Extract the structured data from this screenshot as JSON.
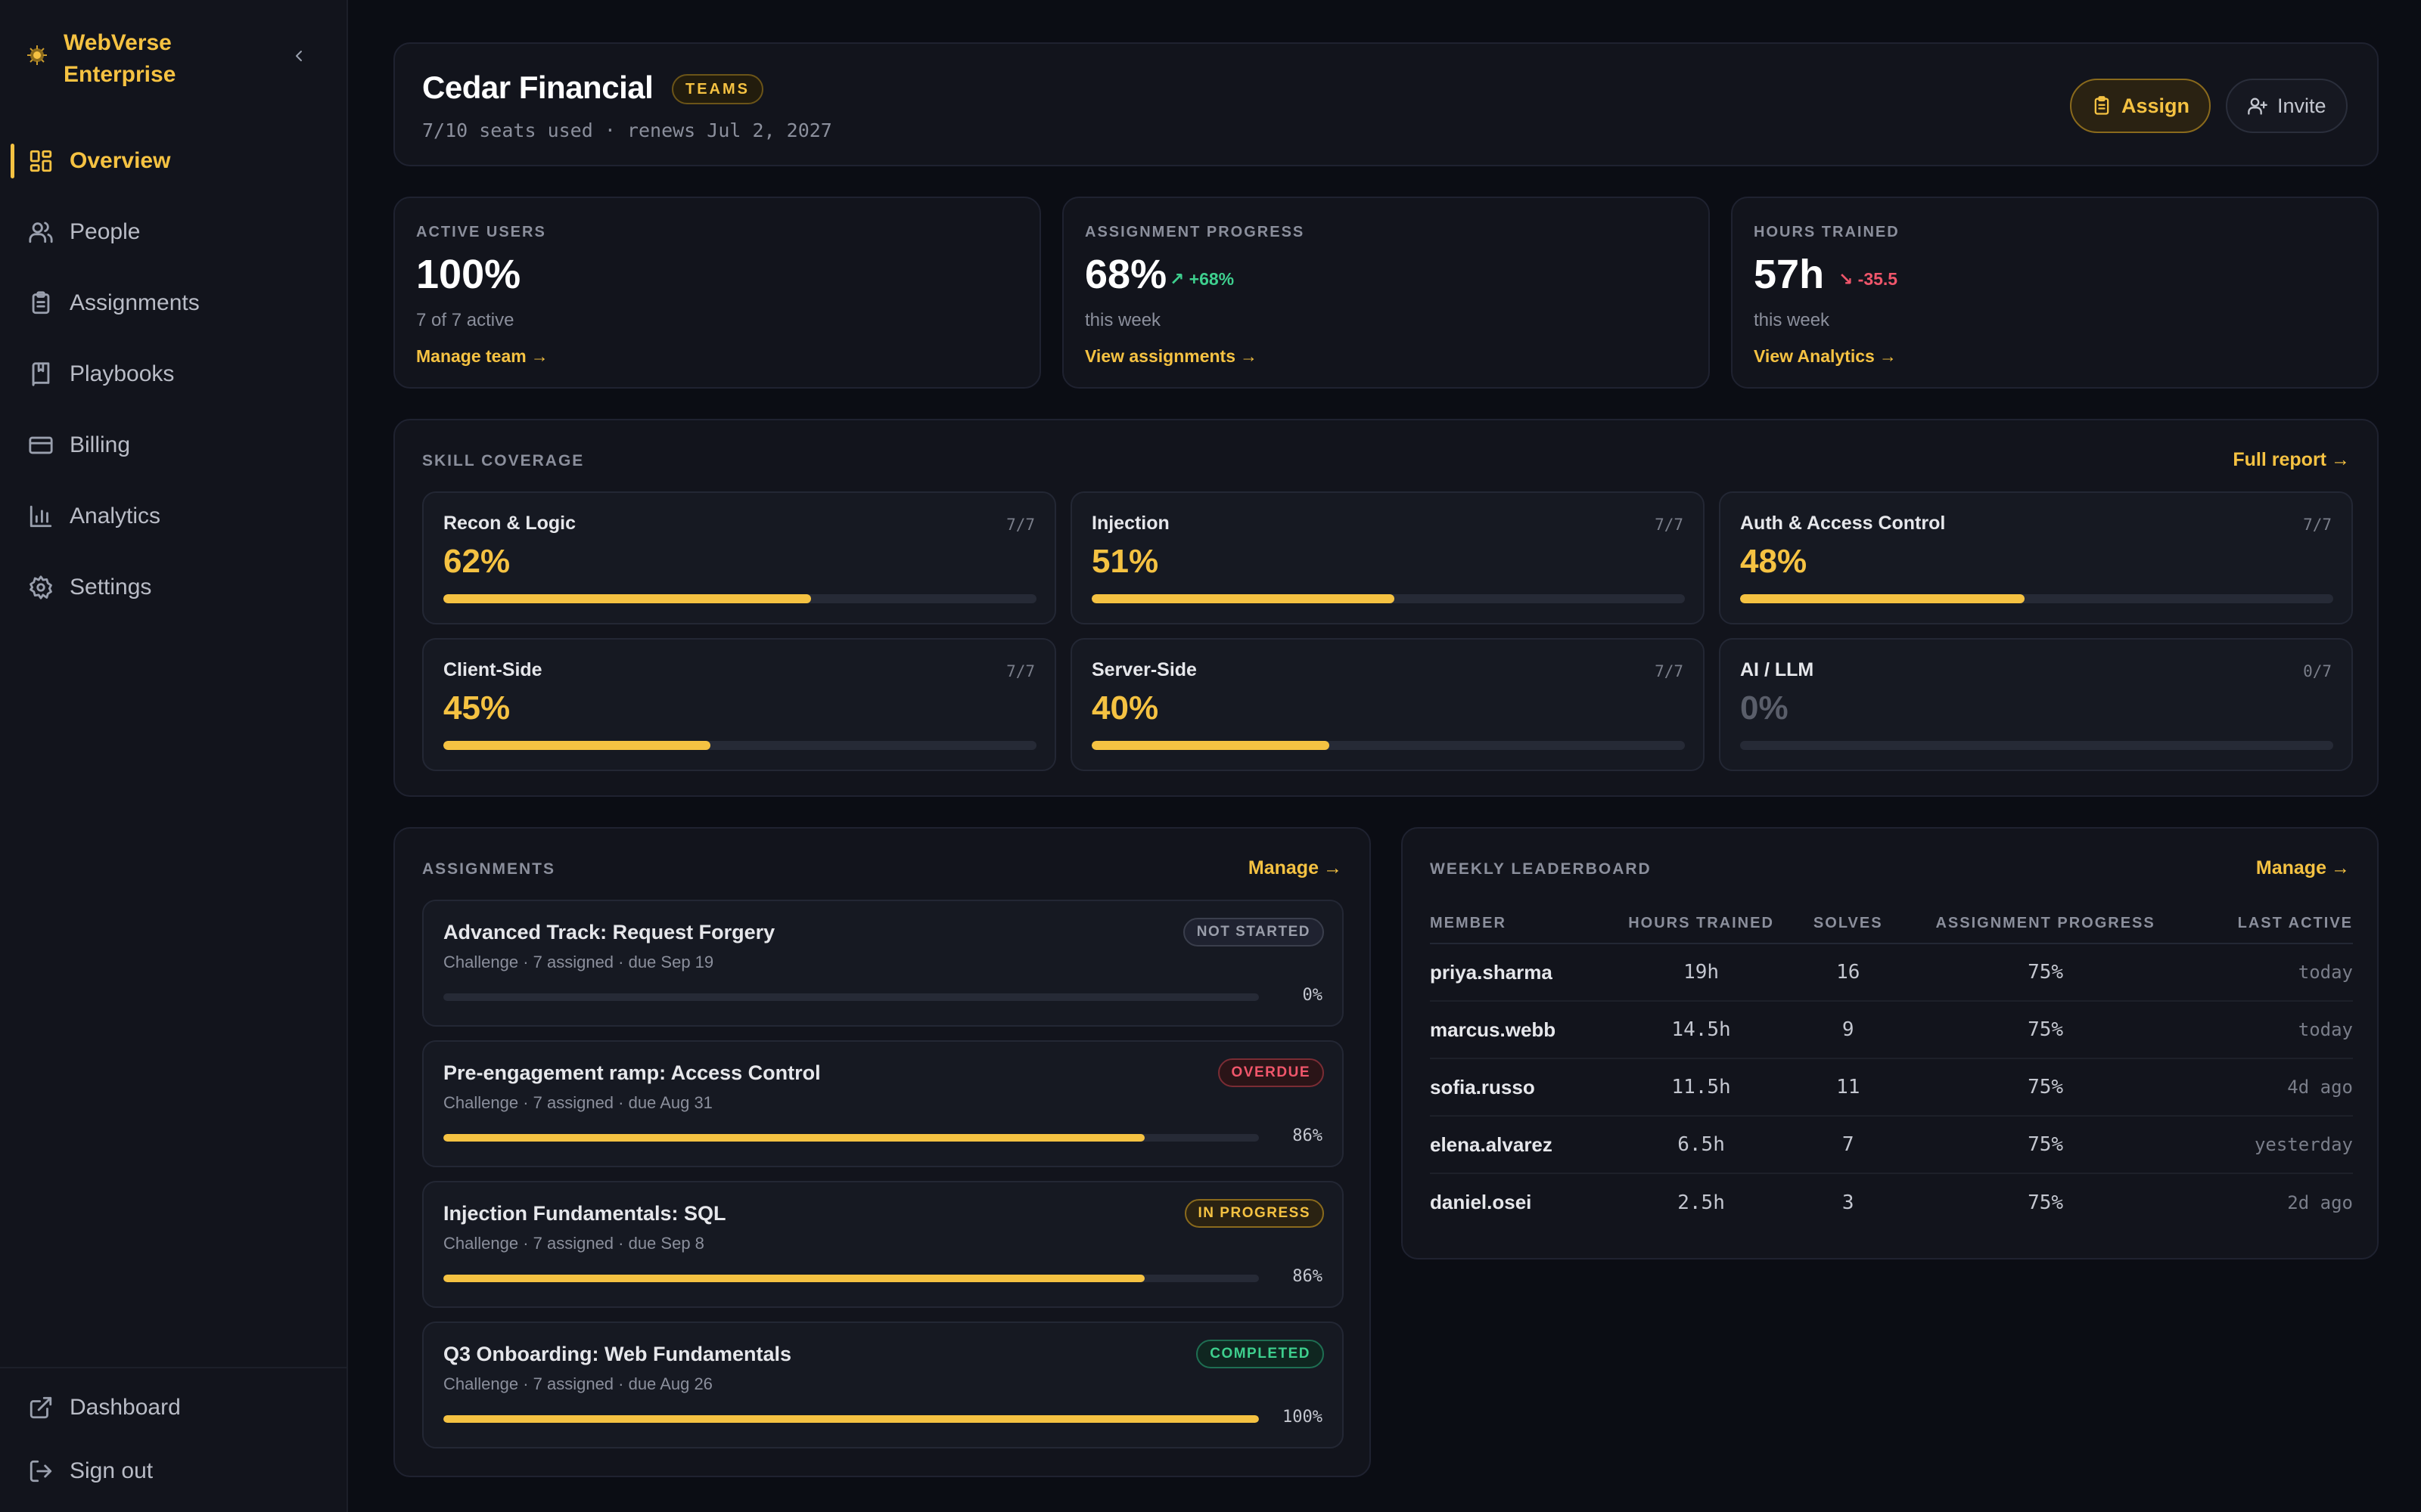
{
  "sidebar": {
    "brand": [
      "WebVerse",
      "Enterprise"
    ],
    "nav": [
      {
        "label": "Overview",
        "icon": "grid-icon",
        "active": true
      },
      {
        "label": "People",
        "icon": "people-icon"
      },
      {
        "label": "Assignments",
        "icon": "clipboard-icon"
      },
      {
        "label": "Playbooks",
        "icon": "book-icon"
      },
      {
        "label": "Billing",
        "icon": "card-icon"
      },
      {
        "label": "Analytics",
        "icon": "bar-chart-icon"
      },
      {
        "label": "Settings",
        "icon": "gear-icon"
      }
    ],
    "bottom": [
      {
        "label": "Dashboard",
        "icon": "external-link-icon"
      },
      {
        "label": "Sign out",
        "icon": "sign-out-icon"
      }
    ]
  },
  "header": {
    "org_name": "Cedar Financial",
    "tier": "TEAMS",
    "seats": "7/10 seats used · renews Jul 2, 2027",
    "assign_label": "Assign",
    "invite_label": "Invite"
  },
  "stats": [
    {
      "label": "ACTIVE USERS",
      "value": "100%",
      "delta": "",
      "sub": "7 of 7 active",
      "link": "Manage team"
    },
    {
      "label": "ASSIGNMENT PROGRESS",
      "value": "68%",
      "delta": "+68%",
      "sub": "this week",
      "link": "View assignments"
    },
    {
      "label": "HOURS TRAINED",
      "value": "57h",
      "delta": "-35.5",
      "sub": "this week",
      "link": "View Analytics"
    }
  ],
  "skills": {
    "title": "SKILL COVERAGE",
    "link": "Full report",
    "items": [
      {
        "name": "Recon & Logic",
        "frac": "7/7",
        "pct": "62%",
        "value": 62
      },
      {
        "name": "Injection",
        "frac": "7/7",
        "pct": "51%",
        "value": 51
      },
      {
        "name": "Auth & Access Control",
        "frac": "7/7",
        "pct": "48%",
        "value": 48
      },
      {
        "name": "Client-Side",
        "frac": "7/7",
        "pct": "45%",
        "value": 45
      },
      {
        "name": "Server-Side",
        "frac": "7/7",
        "pct": "40%",
        "value": 40
      },
      {
        "name": "AI / LLM",
        "frac": "0/7",
        "pct": "0%",
        "value": 0
      }
    ]
  },
  "assignments": {
    "title": "ASSIGNMENTS",
    "link": "Manage",
    "items": [
      {
        "title": "Advanced Track: Request Forgery",
        "meta": "Challenge · 7 assigned · due Sep 19",
        "status": "NOT STARTED",
        "pct": "0%",
        "value": 0
      },
      {
        "title": "Pre-engagement ramp: Access Control",
        "meta": "Challenge · 7 assigned · due Aug 31",
        "status": "OVERDUE",
        "pct": "86%",
        "value": 86
      },
      {
        "title": "Injection Fundamentals: SQL",
        "meta": "Challenge · 7 assigned · due Sep 8",
        "status": "IN PROGRESS",
        "pct": "86%",
        "value": 86
      },
      {
        "title": "Q3 Onboarding: Web Fundamentals",
        "meta": "Challenge · 7 assigned · due Aug 26",
        "status": "COMPLETED",
        "pct": "100%",
        "value": 100
      }
    ]
  },
  "leaderboard": {
    "title": "WEEKLY LEADERBOARD",
    "link": "Manage",
    "columns": [
      "MEMBER",
      "HOURS TRAINED",
      "SOLVES",
      "ASSIGNMENT PROGRESS",
      "LAST ACTIVE"
    ],
    "rows": [
      {
        "member": "priya.sharma",
        "hours": "19h",
        "solves": "16",
        "progress": "75%",
        "last": "today"
      },
      {
        "member": "marcus.webb",
        "hours": "14.5h",
        "solves": "9",
        "progress": "75%",
        "last": "today"
      },
      {
        "member": "sofia.russo",
        "hours": "11.5h",
        "solves": "11",
        "progress": "75%",
        "last": "4d ago"
      },
      {
        "member": "elena.alvarez",
        "hours": "6.5h",
        "solves": "7",
        "progress": "75%",
        "last": "yesterday"
      },
      {
        "member": "daniel.osei",
        "hours": "2.5h",
        "solves": "3",
        "progress": "75%",
        "last": "2d ago"
      }
    ]
  },
  "colors": {
    "accent": "#f5c242",
    "positive": "#3ecf8e",
    "negative": "#f0566b",
    "background": "#0b0d14"
  }
}
